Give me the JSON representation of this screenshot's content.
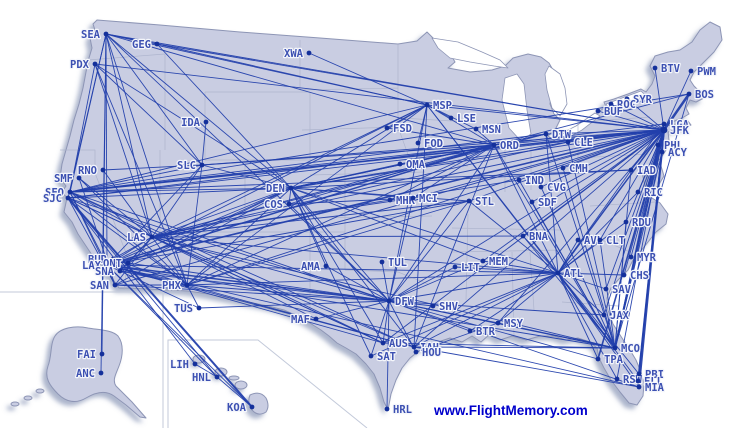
{
  "watermark": {
    "text": "www.FlightMemory.com"
  },
  "style": {
    "background": "#ffffff",
    "land_fill": "#c9cde2",
    "land_border": "#8d95b5",
    "state_border": "#a9b0ca",
    "lake_fill": "#ffffff",
    "inset_border": "#c3cada",
    "shadow_color": "#5a6a9a",
    "route_color": "#2340ac",
    "dot_color": "#14309b",
    "label_color": "#3c50b2",
    "label_halo": "#f4f6fb",
    "watermark_color": "#0000cc"
  },
  "airports": [
    [
      "SEA",
      106,
      34,
      "L"
    ],
    [
      "GEG",
      157,
      44,
      "L"
    ],
    [
      "PDX",
      95,
      64,
      "L"
    ],
    [
      "XWA",
      309,
      53,
      "L"
    ],
    [
      "MSP",
      427,
      105,
      "R"
    ],
    [
      "IDA",
      206,
      122,
      "L"
    ],
    [
      "LSE",
      451,
      118,
      "R"
    ],
    [
      "FSD",
      387,
      128,
      "R"
    ],
    [
      "MSN",
      476,
      129,
      "R"
    ],
    [
      "FOD",
      418,
      143,
      "R"
    ],
    [
      "SLC",
      202,
      165,
      "L"
    ],
    [
      "OMA",
      400,
      164,
      "R"
    ],
    [
      "RNO",
      103,
      170,
      "L"
    ],
    [
      "SMF",
      79,
      178,
      "L"
    ],
    [
      "SFO",
      70,
      192,
      "L"
    ],
    [
      "SJC",
      68,
      198,
      "L"
    ],
    [
      "ORD",
      494,
      145,
      "R"
    ],
    [
      "DTW",
      546,
      134,
      "R"
    ],
    [
      "CLE",
      568,
      142,
      "R"
    ],
    [
      "CMH",
      563,
      168,
      "R"
    ],
    [
      "BTV",
      655,
      68,
      "R"
    ],
    [
      "PWM",
      691,
      71,
      "R"
    ],
    [
      "BOS",
      689,
      94,
      "R"
    ],
    [
      "SYR",
      627,
      99,
      "R"
    ],
    [
      "ROC",
      611,
      104,
      "R"
    ],
    [
      "BUF",
      598,
      111,
      "R"
    ],
    [
      "LGA",
      664,
      124,
      "R"
    ],
    [
      "JFK",
      664,
      130,
      "R"
    ],
    [
      "PHL",
      658,
      145,
      "R"
    ],
    [
      "ACY",
      662,
      152,
      "R"
    ],
    [
      "IAD",
      631,
      170,
      "R"
    ],
    [
      "RIC",
      638,
      192,
      "R"
    ],
    [
      "RDU",
      626,
      222,
      "R"
    ],
    [
      "DEN",
      291,
      188,
      "L"
    ],
    [
      "COS",
      289,
      204,
      "L"
    ],
    [
      "MHK",
      390,
      200,
      "R"
    ],
    [
      "MCI",
      413,
      198,
      "R"
    ],
    [
      "STL",
      469,
      201,
      "R"
    ],
    [
      "IND",
      519,
      180,
      "R"
    ],
    [
      "CVG",
      541,
      187,
      "R"
    ],
    [
      "SDF",
      532,
      202,
      "R"
    ],
    [
      "BNA",
      523,
      236,
      "R"
    ],
    [
      "LAS",
      152,
      237,
      "L"
    ],
    [
      "BUR",
      113,
      259,
      "L"
    ],
    [
      "LAX",
      107,
      265,
      "L"
    ],
    [
      "ONT",
      128,
      263,
      "L"
    ],
    [
      "SNA",
      120,
      271,
      "L"
    ],
    [
      "SAN",
      115,
      285,
      "L"
    ],
    [
      "PHX",
      187,
      285,
      "L"
    ],
    [
      "TUS",
      199,
      308,
      "L"
    ],
    [
      "AMA",
      326,
      266,
      "L"
    ],
    [
      "TUL",
      382,
      262,
      "R"
    ],
    [
      "LIT",
      455,
      267,
      "R"
    ],
    [
      "MEM",
      483,
      261,
      "R"
    ],
    [
      "AVL",
      578,
      240,
      "R"
    ],
    [
      "CLT",
      600,
      240,
      "R"
    ],
    [
      "MYR",
      631,
      257,
      "R"
    ],
    [
      "CHS",
      624,
      275,
      "R"
    ],
    [
      "ATL",
      558,
      273,
      "R"
    ],
    [
      "MAF",
      316,
      319,
      "L"
    ],
    [
      "DFW",
      389,
      301,
      "R"
    ],
    [
      "SHV",
      433,
      306,
      "R"
    ],
    [
      "BTR",
      470,
      331,
      "R"
    ],
    [
      "MSY",
      498,
      323,
      "R"
    ],
    [
      "SAV",
      606,
      289,
      "R"
    ],
    [
      "JAX",
      604,
      315,
      "R"
    ],
    [
      "AUS",
      383,
      343,
      "R"
    ],
    [
      "IAH",
      414,
      347,
      "R"
    ],
    [
      "HOU",
      416,
      352,
      "R"
    ],
    [
      "SAT",
      371,
      356,
      "R"
    ],
    [
      "MCO",
      615,
      348,
      "R"
    ],
    [
      "TPA",
      598,
      359,
      "R"
    ],
    [
      "RSW",
      617,
      379,
      "R"
    ],
    [
      "PBI",
      639,
      374,
      "R"
    ],
    [
      "FLL",
      638,
      381,
      "R"
    ],
    [
      "MIA",
      639,
      387,
      "R"
    ],
    [
      "HRL",
      387,
      409,
      "R"
    ],
    [
      "FAI",
      102,
      354,
      "L"
    ],
    [
      "ANC",
      101,
      373,
      "L"
    ],
    [
      "LIH",
      195,
      364,
      "L"
    ],
    [
      "HNL",
      217,
      377,
      "L"
    ],
    [
      "KOA",
      252,
      407,
      "L"
    ]
  ],
  "routes": [
    [
      "JFK",
      "SEA"
    ],
    [
      "JFK",
      "GEG"
    ],
    [
      "JFK",
      "PDX"
    ],
    [
      "JFK",
      "SFO",
      1.6
    ],
    [
      "JFK",
      "SJC"
    ],
    [
      "JFK",
      "LAX",
      1.6
    ],
    [
      "JFK",
      "LAS"
    ],
    [
      "JFK",
      "PHX"
    ],
    [
      "JFK",
      "SAN"
    ],
    [
      "JFK",
      "SLC"
    ],
    [
      "JFK",
      "DEN"
    ],
    [
      "JFK",
      "MSP"
    ],
    [
      "JFK",
      "ORD"
    ],
    [
      "JFK",
      "DTW"
    ],
    [
      "JFK",
      "CLE"
    ],
    [
      "JFK",
      "CMH"
    ],
    [
      "JFK",
      "IND"
    ],
    [
      "JFK",
      "CVG"
    ],
    [
      "JFK",
      "SDF"
    ],
    [
      "JFK",
      "STL"
    ],
    [
      "JFK",
      "MCI"
    ],
    [
      "JFK",
      "BNA"
    ],
    [
      "JFK",
      "MEM"
    ],
    [
      "JFK",
      "DFW"
    ],
    [
      "JFK",
      "AUS"
    ],
    [
      "JFK",
      "IAH"
    ],
    [
      "JFK",
      "MSY"
    ],
    [
      "JFK",
      "ATL",
      1.5
    ],
    [
      "JFK",
      "CLT"
    ],
    [
      "JFK",
      "RDU"
    ],
    [
      "JFK",
      "RIC"
    ],
    [
      "JFK",
      "IAD"
    ],
    [
      "JFK",
      "MYR"
    ],
    [
      "JFK",
      "CHS"
    ],
    [
      "JFK",
      "SAV"
    ],
    [
      "JFK",
      "JAX"
    ],
    [
      "JFK",
      "MCO",
      2
    ],
    [
      "JFK",
      "TPA",
      1.6
    ],
    [
      "JFK",
      "RSW"
    ],
    [
      "JFK",
      "PBI",
      1.5
    ],
    [
      "JFK",
      "FLL",
      1.6
    ],
    [
      "JFK",
      "MIA",
      2
    ],
    [
      "JFK",
      "BOS",
      2.5
    ],
    [
      "JFK",
      "PWM"
    ],
    [
      "JFK",
      "BTV"
    ],
    [
      "JFK",
      "ROC"
    ],
    [
      "JFK",
      "SYR"
    ],
    [
      "JFK",
      "BUF"
    ],
    [
      "SFO",
      "SEA"
    ],
    [
      "SFO",
      "PDX"
    ],
    [
      "SFO",
      "SLC"
    ],
    [
      "SFO",
      "LAS"
    ],
    [
      "SFO",
      "LAX"
    ],
    [
      "SFO",
      "SAN"
    ],
    [
      "SFO",
      "PHX"
    ],
    [
      "SFO",
      "DEN"
    ],
    [
      "SFO",
      "DFW"
    ],
    [
      "SFO",
      "IAH"
    ],
    [
      "SFO",
      "MSP"
    ],
    [
      "SFO",
      "ORD"
    ],
    [
      "SFO",
      "DTW"
    ],
    [
      "SFO",
      "BOS"
    ],
    [
      "SFO",
      "IAD"
    ],
    [
      "SFO",
      "AUS"
    ],
    [
      "SJC",
      "SEA"
    ],
    [
      "SJC",
      "LAS"
    ],
    [
      "SJC",
      "PHX"
    ],
    [
      "SJC",
      "DEN"
    ],
    [
      "SJC",
      "DFW"
    ],
    [
      "SJC",
      "ORD"
    ],
    [
      "SJC",
      "AUS"
    ],
    [
      "SJC",
      "HNL"
    ],
    [
      "SJC",
      "KOA",
      2
    ],
    [
      "SJC",
      "LIH"
    ],
    [
      "SJC",
      "SAN"
    ],
    [
      "LAX",
      "SEA"
    ],
    [
      "LAX",
      "LAS"
    ],
    [
      "LAX",
      "SLC"
    ],
    [
      "LAX",
      "DEN"
    ],
    [
      "LAX",
      "PHX"
    ],
    [
      "LAX",
      "TUS"
    ],
    [
      "LAX",
      "DFW",
      1.5
    ],
    [
      "LAX",
      "IAH"
    ],
    [
      "LAX",
      "AUS"
    ],
    [
      "LAX",
      "ORD",
      1.5
    ],
    [
      "LAX",
      "MSP"
    ],
    [
      "LAX",
      "STL"
    ],
    [
      "LAX",
      "ATL"
    ],
    [
      "LAX",
      "MIA"
    ],
    [
      "LAX",
      "MCO"
    ],
    [
      "LAX",
      "HNL"
    ],
    [
      "LAX",
      "KOA"
    ],
    [
      "BUR",
      "LAS"
    ],
    [
      "BUR",
      "PHX"
    ],
    [
      "ONT",
      "LAS"
    ],
    [
      "ONT",
      "DEN"
    ],
    [
      "ONT",
      "DFW"
    ],
    [
      "SNA",
      "LAS"
    ],
    [
      "SNA",
      "PHX"
    ],
    [
      "SNA",
      "DEN"
    ],
    [
      "SNA",
      "DFW"
    ],
    [
      "SAN",
      "LAS"
    ],
    [
      "SAN",
      "PHX"
    ],
    [
      "SAN",
      "DEN"
    ],
    [
      "SAN",
      "DFW"
    ],
    [
      "SAN",
      "SMF"
    ],
    [
      "SEA",
      "GEG"
    ],
    [
      "SEA",
      "MSP"
    ],
    [
      "SEA",
      "ORD"
    ],
    [
      "SEA",
      "DEN"
    ],
    [
      "SEA",
      "SLC"
    ],
    [
      "SEA",
      "LAS"
    ],
    [
      "SEA",
      "PHX"
    ],
    [
      "SEA",
      "FAI"
    ],
    [
      "SEA",
      "ANC"
    ],
    [
      "SEA",
      "DFW"
    ],
    [
      "PDX",
      "DEN"
    ],
    [
      "PDX",
      "SLC"
    ],
    [
      "PDX",
      "LAS"
    ],
    [
      "PDX",
      "PHX"
    ],
    [
      "GEG",
      "MSP"
    ],
    [
      "GEG",
      "DEN"
    ],
    [
      "SLC",
      "DEN"
    ],
    [
      "SLC",
      "LAS"
    ],
    [
      "SLC",
      "PHX"
    ],
    [
      "SLC",
      "ORD"
    ],
    [
      "SLC",
      "IDA"
    ],
    [
      "SLC",
      "RNO"
    ],
    [
      "RNO",
      "LAS"
    ],
    [
      "SMF",
      "LAS"
    ],
    [
      "SMF",
      "PHX"
    ],
    [
      "LAS",
      "DEN"
    ],
    [
      "LAS",
      "PHX"
    ],
    [
      "LAS",
      "DFW"
    ],
    [
      "LAS",
      "IAH"
    ],
    [
      "LAS",
      "MSP"
    ],
    [
      "LAS",
      "ORD"
    ],
    [
      "LAS",
      "DTW"
    ],
    [
      "LAS",
      "ATL"
    ],
    [
      "LAS",
      "STL"
    ],
    [
      "LAS",
      "MCI"
    ],
    [
      "LAS",
      "AUS"
    ],
    [
      "LAS",
      "MCO"
    ],
    [
      "LAS",
      "BNA"
    ],
    [
      "LAS",
      "IND"
    ],
    [
      "LAS",
      "MAF"
    ],
    [
      "LAS",
      "CLE"
    ],
    [
      "PHX",
      "DEN"
    ],
    [
      "PHX",
      "DFW"
    ],
    [
      "PHX",
      "ORD"
    ],
    [
      "PHX",
      "IAH"
    ],
    [
      "PHX",
      "ATL"
    ],
    [
      "PHX",
      "MSP"
    ],
    [
      "PHX",
      "TUS"
    ],
    [
      "TUS",
      "DFW"
    ],
    [
      "DEN",
      "COS"
    ],
    [
      "DEN",
      "MSP"
    ],
    [
      "DEN",
      "ORD"
    ],
    [
      "DEN",
      "MCI"
    ],
    [
      "DEN",
      "STL"
    ],
    [
      "DEN",
      "DFW"
    ],
    [
      "DEN",
      "IAH"
    ],
    [
      "DEN",
      "AUS"
    ],
    [
      "DEN",
      "SAT"
    ],
    [
      "DEN",
      "ATL"
    ],
    [
      "DEN",
      "DTW"
    ],
    [
      "DEN",
      "CLE"
    ],
    [
      "DEN",
      "IAD"
    ],
    [
      "DEN",
      "MEM"
    ],
    [
      "DEN",
      "OMA"
    ],
    [
      "DEN",
      "AMA"
    ],
    [
      "COS",
      "MCI"
    ],
    [
      "COS",
      "ORD"
    ],
    [
      "COS",
      "DFW"
    ],
    [
      "AMA",
      "DFW"
    ],
    [
      "MAF",
      "DFW"
    ],
    [
      "MHK",
      "ORD"
    ],
    [
      "MCI",
      "ORD"
    ],
    [
      "MCI",
      "DFW"
    ],
    [
      "STL",
      "DFW"
    ],
    [
      "STL",
      "PHX"
    ],
    [
      "MSP",
      "XWA"
    ],
    [
      "MSP",
      "FSD"
    ],
    [
      "MSP",
      "LSE"
    ],
    [
      "MSP",
      "MSN"
    ],
    [
      "MSP",
      "FOD"
    ],
    [
      "MSP",
      "ORD"
    ],
    [
      "MSP",
      "DFW"
    ],
    [
      "MSP",
      "IAH"
    ],
    [
      "MSP",
      "ATL"
    ],
    [
      "MSP",
      "MCO"
    ],
    [
      "FSD",
      "ORD"
    ],
    [
      "OMA",
      "ORD"
    ],
    [
      "MSN",
      "ORD"
    ],
    [
      "ORD",
      "DTW"
    ],
    [
      "ORD",
      "BOS"
    ],
    [
      "ORD",
      "LGA"
    ],
    [
      "ORD",
      "ATL"
    ],
    [
      "ORD",
      "MCO"
    ],
    [
      "ORD",
      "DFW"
    ],
    [
      "ORD",
      "IAH"
    ],
    [
      "DTW",
      "MCO"
    ],
    [
      "DTW",
      "ATL"
    ],
    [
      "CLE",
      "MCO"
    ],
    [
      "CMH",
      "MCO"
    ],
    [
      "IND",
      "MCO"
    ],
    [
      "CVG",
      "MCO"
    ],
    [
      "SDF",
      "MCO"
    ],
    [
      "BNA",
      "MCO"
    ],
    [
      "MEM",
      "DFW"
    ],
    [
      "LIT",
      "DFW"
    ],
    [
      "TUL",
      "DFW"
    ],
    [
      "DFW",
      "SHV"
    ],
    [
      "DFW",
      "HRL"
    ],
    [
      "DFW",
      "AUS"
    ],
    [
      "DFW",
      "SAT"
    ],
    [
      "DFW",
      "HOU"
    ],
    [
      "DFW",
      "MSY"
    ],
    [
      "DFW",
      "BTR"
    ],
    [
      "DFW",
      "ATL"
    ],
    [
      "DFW",
      "MCO"
    ],
    [
      "DFW",
      "MIA"
    ],
    [
      "DFW",
      "TPA"
    ],
    [
      "DFW",
      "JAX"
    ],
    [
      "IAH",
      "MCO"
    ],
    [
      "IAH",
      "MIA"
    ],
    [
      "IAH",
      "ATL"
    ],
    [
      "HOU",
      "MSY"
    ],
    [
      "AUS",
      "ATL"
    ],
    [
      "AUS",
      "MCO"
    ],
    [
      "SAT",
      "ATL"
    ],
    [
      "MSY",
      "MCO"
    ],
    [
      "MSY",
      "ATL"
    ],
    [
      "BTR",
      "ATL"
    ],
    [
      "ATL",
      "MCO"
    ],
    [
      "ATL",
      "TPA"
    ],
    [
      "ATL",
      "MIA"
    ],
    [
      "ATL",
      "FLL"
    ],
    [
      "ATL",
      "PBI"
    ],
    [
      "ATL",
      "RSW"
    ],
    [
      "ATL",
      "JAX"
    ],
    [
      "ATL",
      "SAV"
    ],
    [
      "ATL",
      "CHS"
    ],
    [
      "ATL",
      "CLT"
    ],
    [
      "ATL",
      "AVL"
    ],
    [
      "ATL",
      "RDU"
    ],
    [
      "ATL",
      "RIC"
    ],
    [
      "ATL",
      "BNA"
    ],
    [
      "ATL",
      "MEM"
    ],
    [
      "ATL",
      "STL"
    ],
    [
      "ATL",
      "LIT"
    ],
    [
      "ATL",
      "LGA"
    ],
    [
      "CLT",
      "MCO"
    ],
    [
      "IAD",
      "MCO"
    ],
    [
      "ACY",
      "MCO"
    ],
    [
      "PHL",
      "MCO"
    ],
    [
      "LGA",
      "MCO"
    ],
    [
      "BOS",
      "MCO"
    ],
    [
      "RDU",
      "MCO"
    ],
    [
      "LIH",
      "HNL"
    ],
    [
      "HNL",
      "KOA"
    ]
  ]
}
